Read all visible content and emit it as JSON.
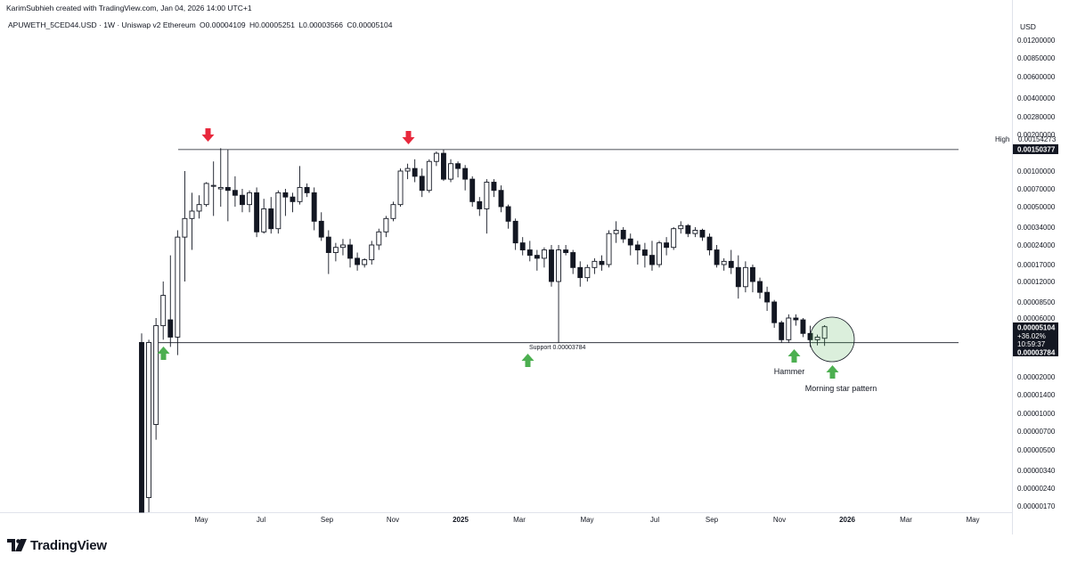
{
  "header": {
    "credit": "KarimSubhieh created with TradingView.com, Jan 04, 2026 14:00 UTC+1",
    "symbol": "APUWETH_5CED44.USD · 1W · Uniswap v2 Ethereum",
    "ohlc": {
      "o": "O0.00004109",
      "h": "H0.00005251",
      "l": "L0.00003566",
      "c": "C0.00005104"
    }
  },
  "footer": {
    "brand": "TradingView"
  },
  "chart_data": {
    "type": "candlestick",
    "scale": "log",
    "y_axis": {
      "unit": "USD",
      "ticks": [
        0.012,
        0.0085,
        0.006,
        0.004,
        0.0028,
        0.002,
        0.001,
        0.0007,
        0.0005,
        0.00034,
        0.00024,
        0.00017,
        0.00012,
        8.5e-05,
        6e-05,
        2e-05,
        1.4e-05,
        1e-05,
        7e-06,
        5e-06,
        3.4e-06,
        2.4e-06,
        1.7e-06
      ],
      "tick_labels": [
        "0.01200000",
        "0.00850000",
        "0.00600000",
        "0.00400000",
        "0.00280000",
        "0.00200000",
        "0.00100000",
        "0.00070000",
        "0.00050000",
        "0.00034000",
        "0.00024000",
        "0.00017000",
        "0.00012000",
        "0.00008500",
        "0.00006000",
        "0.00002000",
        "0.00001400",
        "0.00001000",
        "0.00000700",
        "0.00000500",
        "0.00000340",
        "0.00000240",
        "0.00000170"
      ],
      "labels": {
        "high_tag": "High",
        "high_value": "0.00154273",
        "resistance_value": "0.00150377",
        "price_value": "0.00005104",
        "change": "+36.02%",
        "countdown": "10:59:37",
        "support_value": "0.00003784"
      }
    },
    "x_axis": {
      "ticks": [
        "May",
        "Jul",
        "Sep",
        "Nov",
        "2025",
        "Mar",
        "May",
        "Jul",
        "Sep",
        "Nov",
        "2026",
        "Mar",
        "May"
      ]
    },
    "levels": {
      "resistance": 0.00150377,
      "support": 3.784e-05
    },
    "candles": [
      {
        "o": 3.8e-05,
        "h": 4.5e-05,
        "l": 1.5e-06,
        "c": 1.5e-06
      },
      {
        "o": 2e-06,
        "h": 4e-05,
        "l": 1.5e-06,
        "c": 3.8e-05
      },
      {
        "o": 8e-06,
        "h": 6e-05,
        "l": 6e-06,
        "c": 5.2e-05
      },
      {
        "o": 5.2e-05,
        "h": 0.00012,
        "l": 4e-05,
        "c": 9.5e-05
      },
      {
        "o": 5.8e-05,
        "h": 0.0002,
        "l": 3.5e-05,
        "c": 4.2e-05
      },
      {
        "o": 4.2e-05,
        "h": 0.00032,
        "l": 3e-05,
        "c": 0.00028
      },
      {
        "o": 0.00028,
        "h": 0.001,
        "l": 0.00012,
        "c": 0.0004
      },
      {
        "o": 0.0004,
        "h": 0.00065,
        "l": 0.00022,
        "c": 0.00046
      },
      {
        "o": 0.00046,
        "h": 0.00062,
        "l": 0.0004,
        "c": 0.00052
      },
      {
        "o": 0.00052,
        "h": 0.0008,
        "l": 0.0005,
        "c": 0.00078
      },
      {
        "o": 0.00075,
        "h": 0.0012,
        "l": 0.00042,
        "c": 0.00075
      },
      {
        "o": 0.0007,
        "h": 0.00154273,
        "l": 0.0005,
        "c": 0.00072
      },
      {
        "o": 0.00072,
        "h": 0.0015,
        "l": 0.00038,
        "c": 0.00068
      },
      {
        "o": 0.00068,
        "h": 0.0009,
        "l": 0.0005,
        "c": 0.00062
      },
      {
        "o": 0.00062,
        "h": 0.0007,
        "l": 0.00045,
        "c": 0.00052
      },
      {
        "o": 0.00052,
        "h": 0.00068,
        "l": 0.00045,
        "c": 0.00065
      },
      {
        "o": 0.00065,
        "h": 0.00072,
        "l": 0.00028,
        "c": 0.00031
      },
      {
        "o": 0.00031,
        "h": 0.00058,
        "l": 0.0003,
        "c": 0.00048
      },
      {
        "o": 0.00048,
        "h": 0.0006,
        "l": 0.0003,
        "c": 0.00033
      },
      {
        "o": 0.00033,
        "h": 0.00068,
        "l": 0.0003,
        "c": 0.00065
      },
      {
        "o": 0.00065,
        "h": 0.0007,
        "l": 0.00042,
        "c": 0.0006
      },
      {
        "o": 0.0006,
        "h": 0.00065,
        "l": 0.00045,
        "c": 0.00055
      },
      {
        "o": 0.00055,
        "h": 0.0011,
        "l": 0.00052,
        "c": 0.00072
      },
      {
        "o": 0.00072,
        "h": 0.00078,
        "l": 0.0006,
        "c": 0.00065
      },
      {
        "o": 0.00065,
        "h": 0.00072,
        "l": 0.00032,
        "c": 0.00038
      },
      {
        "o": 0.00038,
        "h": 0.00045,
        "l": 0.00026,
        "c": 0.00028
      },
      {
        "o": 0.00028,
        "h": 0.00032,
        "l": 0.00014,
        "c": 0.00021
      },
      {
        "o": 0.00021,
        "h": 0.00025,
        "l": 0.00018,
        "c": 0.00023
      },
      {
        "o": 0.00023,
        "h": 0.00027,
        "l": 0.0002,
        "c": 0.00024
      },
      {
        "o": 0.00024,
        "h": 0.00027,
        "l": 0.00016,
        "c": 0.00019
      },
      {
        "o": 0.00019,
        "h": 0.00021,
        "l": 0.00015,
        "c": 0.00017
      },
      {
        "o": 0.00017,
        "h": 0.00019,
        "l": 0.00016,
        "c": 0.000185
      },
      {
        "o": 0.000185,
        "h": 0.00026,
        "l": 0.00017,
        "c": 0.00024
      },
      {
        "o": 0.00024,
        "h": 0.00033,
        "l": 0.00022,
        "c": 0.00031
      },
      {
        "o": 0.00031,
        "h": 0.00042,
        "l": 0.00028,
        "c": 0.0004
      },
      {
        "o": 0.0004,
        "h": 0.00055,
        "l": 0.00038,
        "c": 0.00052
      },
      {
        "o": 0.00052,
        "h": 0.00105,
        "l": 0.0005,
        "c": 0.001
      },
      {
        "o": 0.001,
        "h": 0.00115,
        "l": 0.00085,
        "c": 0.00105
      },
      {
        "o": 0.00105,
        "h": 0.00125,
        "l": 0.0008,
        "c": 0.0009
      },
      {
        "o": 0.0009,
        "h": 0.00105,
        "l": 0.0006,
        "c": 0.00068
      },
      {
        "o": 0.00068,
        "h": 0.00125,
        "l": 0.00065,
        "c": 0.0012
      },
      {
        "o": 0.0012,
        "h": 0.00145,
        "l": 0.0011,
        "c": 0.0014
      },
      {
        "o": 0.0014,
        "h": 0.0015,
        "l": 0.00082,
        "c": 0.00085
      },
      {
        "o": 0.00085,
        "h": 0.00125,
        "l": 0.0008,
        "c": 0.00115
      },
      {
        "o": 0.00115,
        "h": 0.0012,
        "l": 0.00088,
        "c": 0.00105
      },
      {
        "o": 0.00105,
        "h": 0.00112,
        "l": 0.00068,
        "c": 0.00085
      },
      {
        "o": 0.00085,
        "h": 0.0009,
        "l": 0.0005,
        "c": 0.00055
      },
      {
        "o": 0.00055,
        "h": 0.0006,
        "l": 0.00042,
        "c": 0.00048
      },
      {
        "o": 0.00048,
        "h": 0.00085,
        "l": 0.0003,
        "c": 0.0008
      },
      {
        "o": 0.0008,
        "h": 0.00085,
        "l": 0.0006,
        "c": 0.00068
      },
      {
        "o": 0.00068,
        "h": 0.00075,
        "l": 0.00045,
        "c": 0.0005
      },
      {
        "o": 0.0005,
        "h": 0.00052,
        "l": 0.00033,
        "c": 0.00038
      },
      {
        "o": 0.00038,
        "h": 0.0004,
        "l": 0.00022,
        "c": 0.00025
      },
      {
        "o": 0.00025,
        "h": 0.00028,
        "l": 0.0002,
        "c": 0.00022
      },
      {
        "o": 0.00022,
        "h": 0.00026,
        "l": 0.00018,
        "c": 0.0002
      },
      {
        "o": 0.0002,
        "h": 0.00022,
        "l": 0.00015,
        "c": 0.00019
      },
      {
        "o": 0.00019,
        "h": 0.00023,
        "l": 0.00016,
        "c": 0.00022
      },
      {
        "o": 0.00022,
        "h": 0.00024,
        "l": 0.00011,
        "c": 0.00012
      },
      {
        "o": 0.00012,
        "h": 0.00024,
        "l": 3.784e-05,
        "c": 0.00022
      },
      {
        "o": 0.00022,
        "h": 0.00024,
        "l": 0.0002,
        "c": 0.00021
      },
      {
        "o": 0.00021,
        "h": 0.00022,
        "l": 0.00014,
        "c": 0.00016
      },
      {
        "o": 0.00016,
        "h": 0.00018,
        "l": 0.00011,
        "c": 0.00013
      },
      {
        "o": 0.00013,
        "h": 0.00017,
        "l": 0.00012,
        "c": 0.00016
      },
      {
        "o": 0.00016,
        "h": 0.00019,
        "l": 0.00014,
        "c": 0.00018
      },
      {
        "o": 0.00018,
        "h": 0.0002,
        "l": 0.00015,
        "c": 0.00017
      },
      {
        "o": 0.00017,
        "h": 0.00032,
        "l": 0.00016,
        "c": 0.0003
      },
      {
        "o": 0.0003,
        "h": 0.00038,
        "l": 0.00025,
        "c": 0.00032
      },
      {
        "o": 0.00032,
        "h": 0.00034,
        "l": 0.00025,
        "c": 0.00027
      },
      {
        "o": 0.00027,
        "h": 0.0003,
        "l": 0.0002,
        "c": 0.00024
      },
      {
        "o": 0.00024,
        "h": 0.00026,
        "l": 0.00017,
        "c": 0.00022
      },
      {
        "o": 0.00022,
        "h": 0.00025,
        "l": 0.00016,
        "c": 0.0002
      },
      {
        "o": 0.0002,
        "h": 0.00026,
        "l": 0.00015,
        "c": 0.00017
      },
      {
        "o": 0.00017,
        "h": 0.00026,
        "l": 0.00016,
        "c": 0.00025
      },
      {
        "o": 0.00025,
        "h": 0.00028,
        "l": 0.0002,
        "c": 0.00023
      },
      {
        "o": 0.00023,
        "h": 0.00034,
        "l": 0.00022,
        "c": 0.00033
      },
      {
        "o": 0.00033,
        "h": 0.00038,
        "l": 0.0003,
        "c": 0.00035
      },
      {
        "o": 0.00035,
        "h": 0.00036,
        "l": 0.00028,
        "c": 0.0003
      },
      {
        "o": 0.0003,
        "h": 0.00034,
        "l": 0.00028,
        "c": 0.00032
      },
      {
        "o": 0.00032,
        "h": 0.00033,
        "l": 0.00026,
        "c": 0.00028
      },
      {
        "o": 0.00028,
        "h": 0.0003,
        "l": 0.0002,
        "c": 0.00022
      },
      {
        "o": 0.00022,
        "h": 0.00024,
        "l": 0.00016,
        "c": 0.00017
      },
      {
        "o": 0.00017,
        "h": 0.00019,
        "l": 0.00015,
        "c": 0.00018
      },
      {
        "o": 0.00018,
        "h": 0.00022,
        "l": 0.00014,
        "c": 0.00016
      },
      {
        "o": 0.00016,
        "h": 0.0002,
        "l": 9e-05,
        "c": 0.00011
      },
      {
        "o": 0.00011,
        "h": 0.00018,
        "l": 0.0001,
        "c": 0.00016
      },
      {
        "o": 0.00016,
        "h": 0.00017,
        "l": 0.0001,
        "c": 0.00012
      },
      {
        "o": 0.00012,
        "h": 0.00013,
        "l": 9e-05,
        "c": 0.0001
      },
      {
        "o": 0.0001,
        "h": 0.00011,
        "l": 7e-05,
        "c": 8.5e-05
      },
      {
        "o": 8.5e-05,
        "h": 8.8e-05,
        "l": 5e-05,
        "c": 5.5e-05
      },
      {
        "o": 5.5e-05,
        "h": 5.7e-05,
        "l": 3.8e-05,
        "c": 4e-05
      },
      {
        "o": 4e-05,
        "h": 6.5e-05,
        "l": 3.8e-05,
        "c": 6e-05
      },
      {
        "o": 6e-05,
        "h": 6.5e-05,
        "l": 5.2e-05,
        "c": 5.8e-05
      },
      {
        "o": 5.8e-05,
        "h": 6e-05,
        "l": 4.2e-05,
        "c": 4.5e-05
      },
      {
        "o": 4.5e-05,
        "h": 5.2e-05,
        "l": 3.5e-05,
        "c": 4e-05
      },
      {
        "o": 4e-05,
        "h": 4.4e-05,
        "l": 3.6e-05,
        "c": 4.2e-05
      },
      {
        "o": 4.109e-05,
        "h": 5.251e-05,
        "l": 3.566e-05,
        "c": 5.104e-05
      }
    ],
    "annotations": {
      "support_label": "Support 0.00003784",
      "hammer": "Hammer",
      "morning_star": "Morning star pattern"
    }
  }
}
